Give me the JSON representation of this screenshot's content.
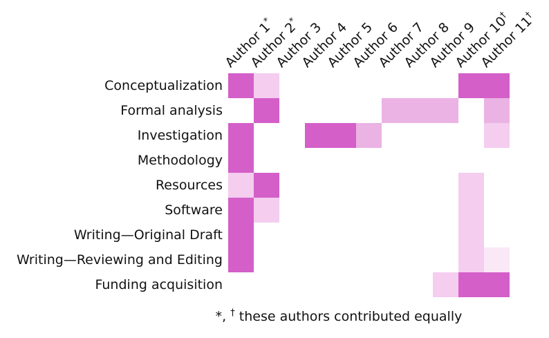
{
  "chart_data": {
    "type": "heatmap",
    "description": "Author contribution (CRediT taxonomy) matrix",
    "columns": [
      {
        "label": "Author 1",
        "marker": "*"
      },
      {
        "label": "Author 2",
        "marker": "*"
      },
      {
        "label": "Author 3",
        "marker": ""
      },
      {
        "label": "Author 4",
        "marker": ""
      },
      {
        "label": "Author 5",
        "marker": ""
      },
      {
        "label": "Author 6",
        "marker": ""
      },
      {
        "label": "Author 7",
        "marker": ""
      },
      {
        "label": "Author 8",
        "marker": ""
      },
      {
        "label": "Author 9",
        "marker": ""
      },
      {
        "label": "Author 10",
        "marker": "†"
      },
      {
        "label": "Author 11",
        "marker": "†"
      }
    ],
    "rows": [
      "Conceptualization",
      "Formal analysis",
      "Investigation",
      "Methodology",
      "Resources",
      "Software",
      "Writing—Original Draft",
      "Writing—Reviewing and Editing",
      "Funding acquisition"
    ],
    "values": [
      [
        4,
        2,
        0,
        0,
        0,
        0,
        0,
        0,
        0,
        4,
        4
      ],
      [
        0,
        4,
        0,
        0,
        0,
        0,
        3,
        3,
        3,
        0,
        3
      ],
      [
        4,
        0,
        0,
        4,
        4,
        3,
        0,
        0,
        0,
        0,
        2
      ],
      [
        4,
        0,
        0,
        0,
        0,
        0,
        0,
        0,
        0,
        0,
        0
      ],
      [
        2,
        4,
        0,
        0,
        0,
        0,
        0,
        0,
        0,
        2,
        0
      ],
      [
        4,
        2,
        0,
        0,
        0,
        0,
        0,
        0,
        0,
        2,
        0
      ],
      [
        4,
        0,
        0,
        0,
        0,
        0,
        0,
        0,
        0,
        2,
        0
      ],
      [
        4,
        0,
        0,
        0,
        0,
        0,
        0,
        0,
        0,
        2,
        1
      ],
      [
        0,
        0,
        0,
        0,
        0,
        0,
        0,
        0,
        2,
        4,
        4
      ]
    ],
    "levels": {
      "0": "#ffffff",
      "1": "#fae8f7",
      "2": "#f4cdef",
      "3": "#eab3e3",
      "4": "#d45fc9"
    },
    "footnote": {
      "symbols_star": "*,",
      "dagger": "†",
      "text": "these authors contributed equally"
    }
  }
}
